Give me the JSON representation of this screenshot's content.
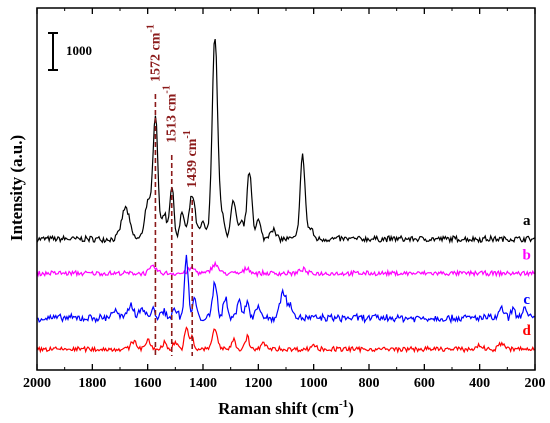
{
  "chart_data": {
    "type": "line",
    "title": "",
    "xlabel": "Raman shift (cm",
    "xlabel_sup": "-1",
    "xlabel_close": ")",
    "ylabel": "Intensity (a.u.)",
    "xlim": [
      2000,
      200
    ],
    "x_reversed": true,
    "x_ticks": [
      2000,
      1800,
      1600,
      1400,
      1200,
      1000,
      800,
      600,
      400,
      200
    ],
    "y_ticks_shown": false,
    "grid": false,
    "scale_bar_label": "1000",
    "annotations": [
      {
        "x": 1572,
        "text": "1572 cm",
        "sup": "-1",
        "color": "#8b1a1a"
      },
      {
        "x": 1513,
        "text": "1513 cm",
        "sup": "-1",
        "color": "#8b1a1a"
      },
      {
        "x": 1439,
        "text": "1439 cm",
        "sup": "-1",
        "color": "#8b1a1a"
      }
    ],
    "series": [
      {
        "label": "a",
        "color": "#000000",
        "label_color": "#000000",
        "baseline_value": 0,
        "peaks": [
          [
            1680,
            300,
            14
          ],
          [
            1600,
            350,
            11
          ],
          [
            1572,
            1200,
            9
          ],
          [
            1540,
            250,
            8
          ],
          [
            1513,
            500,
            8
          ],
          [
            1475,
            250,
            8
          ],
          [
            1439,
            420,
            11
          ],
          [
            1400,
            150,
            10
          ],
          [
            1357,
            1950,
            10
          ],
          [
            1330,
            200,
            8
          ],
          [
            1290,
            350,
            10
          ],
          [
            1260,
            150,
            8
          ],
          [
            1232,
            650,
            9
          ],
          [
            1200,
            180,
            8
          ],
          [
            1150,
            100,
            10
          ],
          [
            1040,
            800,
            9
          ],
          [
            1010,
            100,
            8
          ]
        ]
      },
      {
        "label": "b",
        "color": "#ff00ff",
        "label_color": "#ff00ff",
        "baseline_value": -330,
        "peaks": [
          [
            1580,
            60,
            12
          ],
          [
            1440,
            50,
            12
          ],
          [
            1357,
            90,
            12
          ],
          [
            1240,
            50,
            10
          ],
          [
            1040,
            40,
            10
          ]
        ]
      },
      {
        "label": "c",
        "color": "#0000ff",
        "label_color": "#0000ff",
        "baseline_value": -760,
        "peaks": [
          [
            1720,
            70,
            12
          ],
          [
            1660,
            130,
            10
          ],
          [
            1620,
            100,
            10
          ],
          [
            1580,
            80,
            8
          ],
          [
            1540,
            70,
            8
          ],
          [
            1500,
            90,
            8
          ],
          [
            1460,
            580,
            7
          ],
          [
            1430,
            200,
            6
          ],
          [
            1357,
            350,
            8
          ],
          [
            1320,
            200,
            7
          ],
          [
            1270,
            200,
            7
          ],
          [
            1240,
            160,
            7
          ],
          [
            1200,
            130,
            8
          ],
          [
            1110,
            250,
            12
          ],
          [
            1080,
            100,
            10
          ],
          [
            320,
            90,
            8
          ],
          [
            280,
            80,
            8
          ],
          [
            240,
            100,
            8
          ]
        ]
      },
      {
        "label": "d",
        "color": "#ff0000",
        "label_color": "#ff0000",
        "baseline_value": -1060,
        "peaks": [
          [
            1650,
            80,
            10
          ],
          [
            1600,
            80,
            10
          ],
          [
            1540,
            60,
            8
          ],
          [
            1500,
            70,
            8
          ],
          [
            1460,
            200,
            7
          ],
          [
            1440,
            120,
            6
          ],
          [
            1357,
            200,
            9
          ],
          [
            1290,
            90,
            8
          ],
          [
            1240,
            120,
            7
          ],
          [
            1180,
            60,
            8
          ],
          [
            1000,
            40,
            10
          ],
          [
            400,
            40,
            10
          ],
          [
            320,
            60,
            10
          ]
        ]
      }
    ]
  }
}
